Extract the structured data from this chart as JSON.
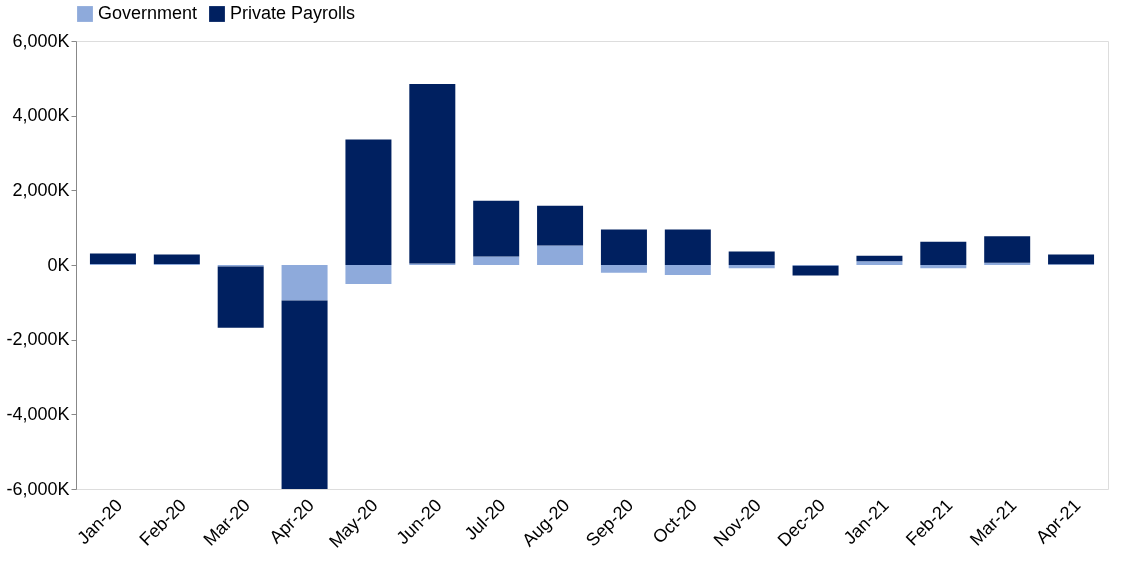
{
  "chart_data": {
    "type": "bar",
    "stacked": true,
    "legend": "top",
    "grid": false,
    "categories": [
      "Jan-20",
      "Feb-20",
      "Mar-20",
      "Apr-20",
      "May-20",
      "Jun-20",
      "Jul-20",
      "Aug-20",
      "Sep-20",
      "Oct-20",
      "Nov-20",
      "Dec-20",
      "Jan-21",
      "Feb-21",
      "Mar-21",
      "Apr-21"
    ],
    "series": [
      {
        "name": "Government",
        "color": "#8eaadb",
        "values": [
          30,
          30,
          -40,
          -950,
          -510,
          40,
          230,
          520,
          -210,
          -270,
          -90,
          -20,
          100,
          -90,
          60,
          20
        ]
      },
      {
        "name": "Private Payrolls",
        "color": "#002060",
        "values": [
          280,
          250,
          -1640,
          -5050,
          3360,
          4810,
          1490,
          1070,
          950,
          950,
          360,
          -260,
          150,
          620,
          710,
          260
        ]
      }
    ],
    "ylim": [
      -6000,
      6000
    ],
    "yticks": [
      {
        "value": -6000,
        "label": "-6,000K"
      },
      {
        "value": -4000,
        "label": "-4,000K"
      },
      {
        "value": -2000,
        "label": "-2,000K"
      },
      {
        "value": 0,
        "label": "0K"
      },
      {
        "value": 2000,
        "label": "2,000K"
      },
      {
        "value": 4000,
        "label": "4,000K"
      },
      {
        "value": 6000,
        "label": "6,000K"
      }
    ]
  }
}
